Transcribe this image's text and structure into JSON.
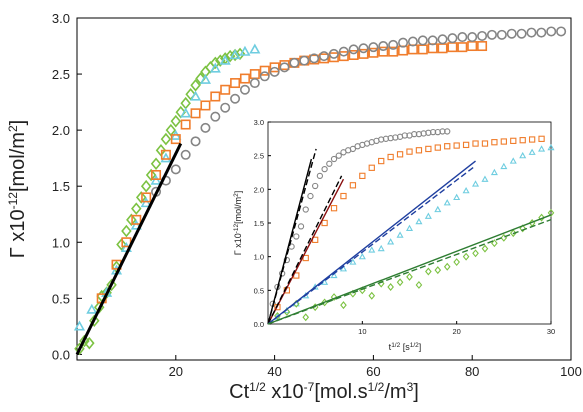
{
  "chart_data": [
    {
      "type": "scatter",
      "title": "",
      "xlabel": "Ct",
      "xlabel_sup": "1/2",
      "xlabel_mid": " x10",
      "xlabel_sup2": "-7",
      "xlabel_unit": "[mol.s",
      "xlabel_unit_sup": "1/2",
      "xlabel_unit_end": "/m",
      "xlabel_unit_sup2": "3",
      "xlabel_close": "]",
      "ylabel": "Γ x10",
      "ylabel_sup": "-12",
      "ylabel_unit": "[mol/m",
      "ylabel_unit_sup": "2",
      "ylabel_close": "]",
      "xlim": [
        0,
        100
      ],
      "ylim": [
        -0.05,
        3.0
      ],
      "xticks": [
        20,
        40,
        60,
        80,
        100
      ],
      "xtick_labels": [
        "20",
        "40",
        "60",
        "80",
        "100"
      ],
      "yticks": [
        0.0,
        0.5,
        1.0,
        1.5,
        2.0,
        2.5,
        3.0
      ],
      "ytick_labels": [
        "0.0",
        "0.5",
        "1.0",
        "1.5",
        "2.0",
        "2.5",
        "3.0"
      ],
      "series": [
        {
          "marker": "diamond",
          "color": "#7cc242",
          "x": [
            0.5,
            1.5,
            2.5,
            3.5,
            4.5,
            5.0,
            6.0,
            7.0,
            8.0,
            9.0,
            10.0,
            11.0,
            12.0,
            13.0,
            14.0,
            15.0,
            16.0,
            17.0,
            18.0,
            19.0,
            20.0,
            21.0,
            22.0,
            23.0,
            24.0,
            25.0,
            26.0,
            27.0,
            28.0,
            29.0,
            30.0,
            31.0,
            32.0,
            33.0
          ],
          "y": [
            0.05,
            0.12,
            0.1,
            0.3,
            0.42,
            0.52,
            0.55,
            0.62,
            0.78,
            0.98,
            1.1,
            1.2,
            1.3,
            1.4,
            1.5,
            1.6,
            1.7,
            1.82,
            1.92,
            2.0,
            2.08,
            2.16,
            2.24,
            2.32,
            2.4,
            2.46,
            2.52,
            2.56,
            2.6,
            2.62,
            2.64,
            2.66,
            2.67,
            2.68
          ]
        },
        {
          "marker": "triangle",
          "color": "#6fcde0",
          "x": [
            0.5,
            3.0,
            6.0,
            8.0,
            10.0,
            12.0,
            14.0,
            16.0,
            18.0,
            20.0,
            22.0,
            24.0,
            26.0,
            28.0,
            30.0,
            32.0,
            34.0,
            36.0
          ],
          "y": [
            0.25,
            0.4,
            0.55,
            0.75,
            0.95,
            1.15,
            1.35,
            1.55,
            1.75,
            1.95,
            2.15,
            2.3,
            2.45,
            2.55,
            2.62,
            2.67,
            2.7,
            2.72
          ]
        },
        {
          "marker": "square",
          "color": "#f07d2c",
          "x": [
            5.0,
            8.0,
            10.0,
            12.0,
            14.0,
            16.0,
            18.0,
            20.0,
            22.0,
            24.0,
            26.0,
            28.0,
            30.0,
            32.0,
            34.0,
            36.0,
            38.0,
            40.0,
            42.0,
            44.0,
            46.0,
            48.0,
            50.0,
            52.0,
            54.0,
            56.0,
            58.0,
            60.0,
            62.0,
            64.0,
            66.0,
            68.0,
            70.0,
            72.0,
            74.0,
            76.0,
            78.0,
            80.0,
            82.0
          ],
          "y": [
            0.5,
            0.8,
            1.0,
            1.2,
            1.4,
            1.6,
            1.78,
            1.92,
            2.05,
            2.15,
            2.22,
            2.3,
            2.36,
            2.42,
            2.46,
            2.5,
            2.53,
            2.56,
            2.58,
            2.6,
            2.62,
            2.63,
            2.64,
            2.65,
            2.66,
            2.67,
            2.68,
            2.69,
            2.7,
            2.7,
            2.71,
            2.72,
            2.72,
            2.73,
            2.73,
            2.74,
            2.74,
            2.75,
            2.75
          ]
        },
        {
          "marker": "circle",
          "color": "#858585",
          "x": [
            16.0,
            18.0,
            20.0,
            22.0,
            24.0,
            26.0,
            28.0,
            30.0,
            32.0,
            34.0,
            36.0,
            38.0,
            40.0,
            42.0,
            44.0,
            46.0,
            48.0,
            50.0,
            52.0,
            54.0,
            56.0,
            58.0,
            60.0,
            62.0,
            64.0,
            66.0,
            68.0,
            70.0,
            72.0,
            74.0,
            76.0,
            78.0,
            80.0,
            82.0,
            84.0,
            86.0,
            88.0,
            90.0,
            92.0,
            94.0,
            96.0,
            98.0
          ],
          "y": [
            1.45,
            1.55,
            1.65,
            1.78,
            1.9,
            2.02,
            2.12,
            2.2,
            2.28,
            2.36,
            2.42,
            2.48,
            2.52,
            2.56,
            2.6,
            2.62,
            2.64,
            2.66,
            2.68,
            2.7,
            2.72,
            2.73,
            2.74,
            2.75,
            2.76,
            2.78,
            2.79,
            2.8,
            2.8,
            2.81,
            2.82,
            2.83,
            2.83,
            2.84,
            2.85,
            2.85,
            2.86,
            2.86,
            2.87,
            2.87,
            2.88,
            2.88
          ]
        }
      ],
      "fit_line": {
        "x": [
          0,
          21
        ],
        "y": [
          0.0,
          1.88
        ],
        "color": "#000000"
      }
    },
    {
      "type": "scatter",
      "title": "",
      "xlabel": "t",
      "xlabel_sup": "1/2",
      "xlabel_unit": " [s",
      "xlabel_unit_sup": "1/2",
      "xlabel_close": "]",
      "ylabel": "Γ x10",
      "ylabel_sup": "-12",
      "ylabel_unit": "[mol/m",
      "ylabel_unit_sup": "2",
      "ylabel_close": "]",
      "xlim": [
        0,
        30
      ],
      "ylim": [
        0,
        3.0
      ],
      "xticks": [
        10,
        20,
        30
      ],
      "xtick_labels": [
        "10",
        "20",
        "30"
      ],
      "yticks": [
        0.0,
        0.5,
        1.0,
        1.5,
        2.0,
        2.5,
        3.0
      ],
      "ytick_labels": [
        "0.0",
        "0.5",
        "1.0",
        "1.5",
        "2.0",
        "2.5",
        "3.0"
      ],
      "series": [
        {
          "marker": "circle",
          "color": "#858585",
          "x": [
            0.5,
            1.0,
            1.5,
            2.0,
            2.5,
            3.0,
            3.5,
            4.0,
            4.5,
            5.0,
            5.5,
            6.0,
            6.5,
            7.0,
            7.5,
            8.0,
            8.5,
            9.0,
            9.5,
            10.0,
            10.5,
            11.0,
            11.5,
            12.0,
            12.5,
            13.0,
            13.5,
            14.0,
            14.5,
            15.0,
            15.5,
            16.0,
            16.5,
            17.0,
            17.5,
            18.0,
            18.5,
            19.0
          ],
          "y": [
            0.3,
            0.55,
            0.75,
            0.95,
            1.15,
            1.3,
            1.45,
            1.7,
            1.9,
            2.05,
            2.2,
            2.3,
            2.38,
            2.45,
            2.5,
            2.55,
            2.58,
            2.6,
            2.64,
            2.66,
            2.68,
            2.7,
            2.72,
            2.74,
            2.75,
            2.76,
            2.77,
            2.78,
            2.8,
            2.8,
            2.82,
            2.82,
            2.83,
            2.84,
            2.85,
            2.85,
            2.86,
            2.86
          ]
        },
        {
          "marker": "square",
          "color": "#f07d2c",
          "x": [
            1.0,
            2.0,
            3.0,
            4.0,
            5.0,
            6.0,
            7.0,
            8.0,
            9.0,
            10.0,
            11.0,
            12.0,
            13.0,
            14.0,
            15.0,
            16.0,
            17.0,
            18.0,
            19.0,
            20.0,
            21.0,
            22.0,
            23.0,
            24.0,
            25.0,
            26.0,
            27.0,
            28.0,
            29.0
          ],
          "y": [
            0.25,
            0.5,
            0.72,
            0.98,
            1.25,
            1.5,
            1.72,
            1.9,
            2.06,
            2.2,
            2.32,
            2.42,
            2.48,
            2.52,
            2.56,
            2.58,
            2.6,
            2.62,
            2.64,
            2.65,
            2.66,
            2.68,
            2.68,
            2.7,
            2.71,
            2.72,
            2.73,
            2.74,
            2.75
          ]
        },
        {
          "marker": "triangle",
          "color": "#6fcde0",
          "x": [
            1.0,
            2.0,
            3.0,
            4.0,
            5.0,
            6.0,
            7.0,
            8.0,
            9.0,
            10.0,
            11.0,
            12.0,
            13.0,
            14.0,
            15.0,
            16.0,
            17.0,
            18.0,
            19.0,
            20.0,
            21.0,
            22.0,
            23.0,
            24.0,
            25.0,
            26.0,
            27.0,
            28.0,
            29.0,
            30.0
          ],
          "y": [
            0.1,
            0.2,
            0.3,
            0.42,
            0.55,
            0.62,
            0.72,
            0.82,
            0.92,
            1.0,
            1.1,
            1.12,
            1.22,
            1.32,
            1.42,
            1.52,
            1.6,
            1.7,
            1.8,
            1.88,
            1.98,
            2.08,
            2.15,
            2.25,
            2.34,
            2.42,
            2.5,
            2.55,
            2.6,
            2.62
          ]
        },
        {
          "marker": "diamond",
          "color": "#7cc242",
          "x": [
            1.0,
            2.0,
            3.0,
            4.0,
            5.0,
            6.0,
            7.0,
            8.0,
            9.0,
            10.0,
            11.0,
            12.0,
            13.0,
            14.0,
            15.0,
            16.0,
            17.0,
            18.0,
            19.0,
            20.0,
            21.0,
            22.0,
            23.0,
            24.0,
            25.0,
            26.0,
            27.0,
            28.0,
            29.0,
            30.0
          ],
          "y": [
            0.12,
            0.18,
            0.3,
            0.1,
            0.25,
            0.32,
            0.4,
            0.28,
            0.45,
            0.5,
            0.42,
            0.6,
            0.55,
            0.62,
            0.7,
            0.58,
            0.78,
            0.8,
            0.85,
            0.92,
            1.0,
            1.05,
            1.12,
            1.2,
            1.28,
            1.35,
            1.42,
            1.5,
            1.58,
            1.65
          ]
        }
      ],
      "fit_lines": [
        {
          "x": [
            0,
            4.6
          ],
          "y": [
            0,
            2.45
          ],
          "color": "#000000",
          "dashed": false
        },
        {
          "x": [
            0,
            5.1
          ],
          "y": [
            0,
            2.6
          ],
          "color": "#000000",
          "dashed": true
        },
        {
          "x": [
            0,
            8.0
          ],
          "y": [
            0,
            2.15
          ],
          "color": "#8b1010",
          "dashed": false
        },
        {
          "x": [
            0,
            7.8
          ],
          "y": [
            0,
            2.2
          ],
          "color": "#000000",
          "dashed": true
        },
        {
          "x": [
            0,
            22.0
          ],
          "y": [
            0,
            2.42
          ],
          "color": "#1f3fa0",
          "dashed": false
        },
        {
          "x": [
            0,
            22.0
          ],
          "y": [
            0,
            2.35
          ],
          "color": "#1f3fa0",
          "dashed": true
        },
        {
          "x": [
            0,
            30.0
          ],
          "y": [
            0,
            1.62
          ],
          "color": "#2e7d32",
          "dashed": false
        },
        {
          "x": [
            0,
            30.0
          ],
          "y": [
            0,
            1.55
          ],
          "color": "#2e7d32",
          "dashed": true
        }
      ]
    }
  ]
}
